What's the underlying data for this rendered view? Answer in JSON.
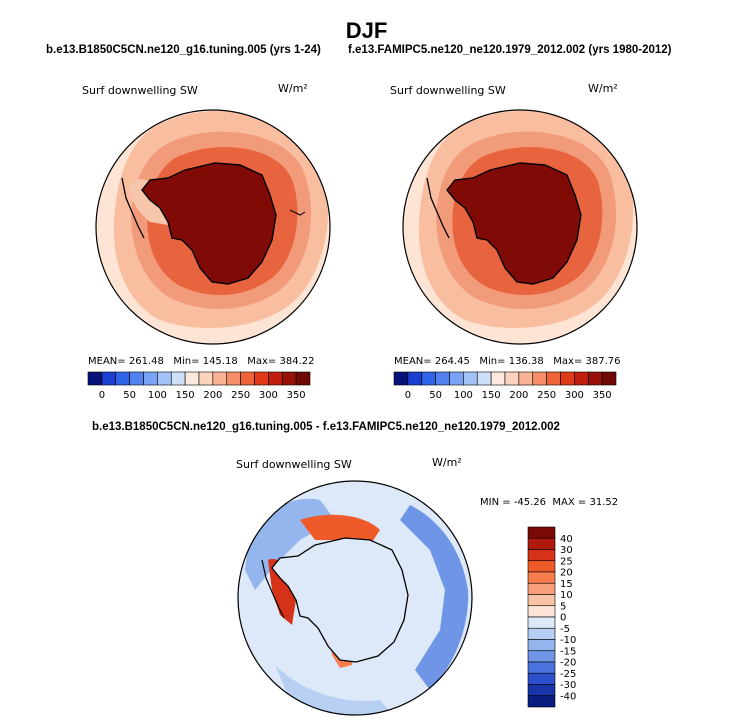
{
  "chart_data": [
    {
      "type": "heatmap",
      "projection": "south-polar-stereographic",
      "season_title": "DJF",
      "case_title": "b.e13.B1850C5CN.ne120_g16.tuning.005 (yrs 1-24)",
      "variable_label": "Surf downwelling SW",
      "units": "W/m²",
      "stats": {
        "mean_label": "MEAN=",
        "mean": "261.48",
        "min_label": "Min=",
        "min": "145.18",
        "max_label": "Max=",
        "max": "384.22"
      },
      "colorbar": {
        "orientation": "horizontal",
        "levels": [
          0,
          25,
          50,
          75,
          100,
          125,
          150,
          175,
          200,
          225,
          250,
          275,
          300,
          325,
          350
        ],
        "tick_labels": [
          "0",
          "50",
          "100",
          "150",
          "200",
          "250",
          "300",
          "350"
        ],
        "colors": [
          "#08137a",
          "#1a3fd1",
          "#2f63e8",
          "#5282f0",
          "#7aa2f5",
          "#a3c2f7",
          "#cde0f8",
          "#fbe9de",
          "#fcd3bd",
          "#f9b293",
          "#f58e68",
          "#ee6438",
          "#e03a18",
          "#c01d0e",
          "#981108",
          "#6e0905"
        ]
      }
    },
    {
      "type": "heatmap",
      "projection": "south-polar-stereographic",
      "case_title": "f.e13.FAMIPC5.ne120_ne120.1979_2012.002 (yrs 1980-2012)",
      "variable_label": "Surf downwelling SW",
      "units": "W/m²",
      "stats": {
        "mean_label": "MEAN=",
        "mean": "264.45",
        "min_label": "Min=",
        "min": "136.38",
        "max_label": "Max=",
        "max": "387.76"
      },
      "colorbar": {
        "orientation": "horizontal",
        "levels": [
          0,
          25,
          50,
          75,
          100,
          125,
          150,
          175,
          200,
          225,
          250,
          275,
          300,
          325,
          350
        ],
        "tick_labels": [
          "0",
          "50",
          "100",
          "150",
          "200",
          "250",
          "300",
          "350"
        ],
        "colors": [
          "#08137a",
          "#1a3fd1",
          "#2f63e8",
          "#5282f0",
          "#7aa2f5",
          "#a3c2f7",
          "#cde0f8",
          "#fbe9de",
          "#fcd3bd",
          "#f9b293",
          "#f58e68",
          "#ee6438",
          "#e03a18",
          "#c01d0e",
          "#981108",
          "#6e0905"
        ]
      }
    },
    {
      "type": "heatmap",
      "projection": "south-polar-stereographic",
      "case_title": "b.e13.B1850C5CN.ne120_g16.tuning.005 - f.e13.FAMIPC5.ne120_ne120.1979_2012.002",
      "variable_label": "Surf downwelling SW",
      "units": "W/m²",
      "stats": {
        "min_label": "MIN =",
        "min": "-45.26",
        "max_label": "MAX =",
        "max": "31.52"
      },
      "colorbar": {
        "orientation": "vertical",
        "tick_labels": [
          "40",
          "30",
          "25",
          "20",
          "15",
          "10",
          "5",
          "0",
          "-5",
          "-10",
          "-15",
          "-20",
          "-25",
          "-30",
          "-40"
        ],
        "colors": [
          "#7a0a06",
          "#b01a0e",
          "#d63217",
          "#ee5a2a",
          "#f77d4f",
          "#f9a07a",
          "#fbc3a6",
          "#fde4d6",
          "#dde9f8",
          "#b8cff4",
          "#94b5ee",
          "#6e95e6",
          "#4a72dc",
          "#2c50cc",
          "#1834a8",
          "#0b1c80"
        ]
      }
    }
  ]
}
